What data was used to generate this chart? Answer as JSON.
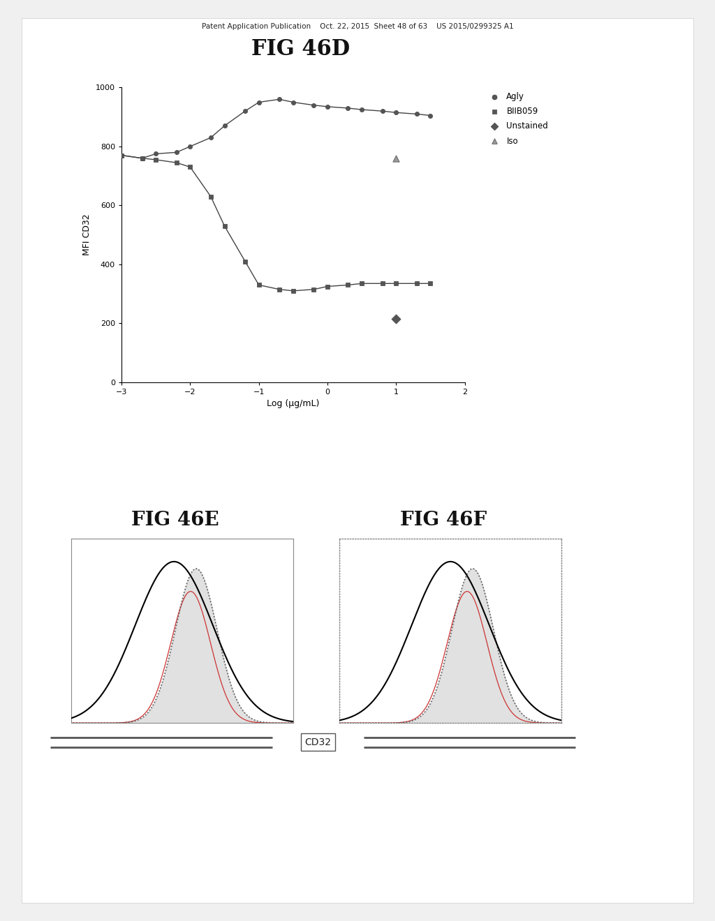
{
  "title_top": "Patent Application Publication    Oct. 22, 2015  Sheet 48 of 63    US 2015/0299325 A1",
  "fig46d_title": "FIG 46D",
  "fig46e_title": "FIG 46E",
  "fig46f_title": "FIG 46F",
  "xlabel": "Log (μg/mL)",
  "ylabel": "MFI CD32",
  "ylim": [
    0,
    1000
  ],
  "xlim": [
    -3,
    2
  ],
  "xticks": [
    -3,
    -2,
    -1,
    0,
    1,
    2
  ],
  "yticks": [
    0,
    200,
    400,
    600,
    800,
    1000
  ],
  "agly_x": [
    -3,
    -2.7,
    -2.5,
    -2.2,
    -2,
    -1.7,
    -1.5,
    -1.2,
    -1,
    -0.7,
    -0.5,
    -0.2,
    0,
    0.3,
    0.5,
    0.8,
    1,
    1.3,
    1.5
  ],
  "agly_y": [
    770,
    760,
    775,
    780,
    800,
    830,
    870,
    920,
    950,
    960,
    950,
    940,
    935,
    930,
    925,
    920,
    915,
    910,
    905
  ],
  "biib059_x": [
    -3,
    -2.7,
    -2.5,
    -2.2,
    -2,
    -1.7,
    -1.5,
    -1.2,
    -1,
    -0.7,
    -0.5,
    -0.2,
    0,
    0.3,
    0.5,
    0.8,
    1,
    1.3,
    1.5
  ],
  "biib059_y": [
    770,
    760,
    755,
    745,
    730,
    630,
    530,
    410,
    330,
    315,
    310,
    315,
    325,
    330,
    335,
    335,
    335,
    335,
    335
  ],
  "unstained_x": [
    1
  ],
  "unstained_y": [
    215
  ],
  "iso_x": [
    1
  ],
  "iso_y": [
    760
  ],
  "legend_labels": [
    "Agly",
    "BIIB059",
    "Unstained",
    "Iso"
  ],
  "line_color": "#444444",
  "marker_color": "#555555",
  "background_color": "#ffffff",
  "page_bg": "#e8e8e8"
}
